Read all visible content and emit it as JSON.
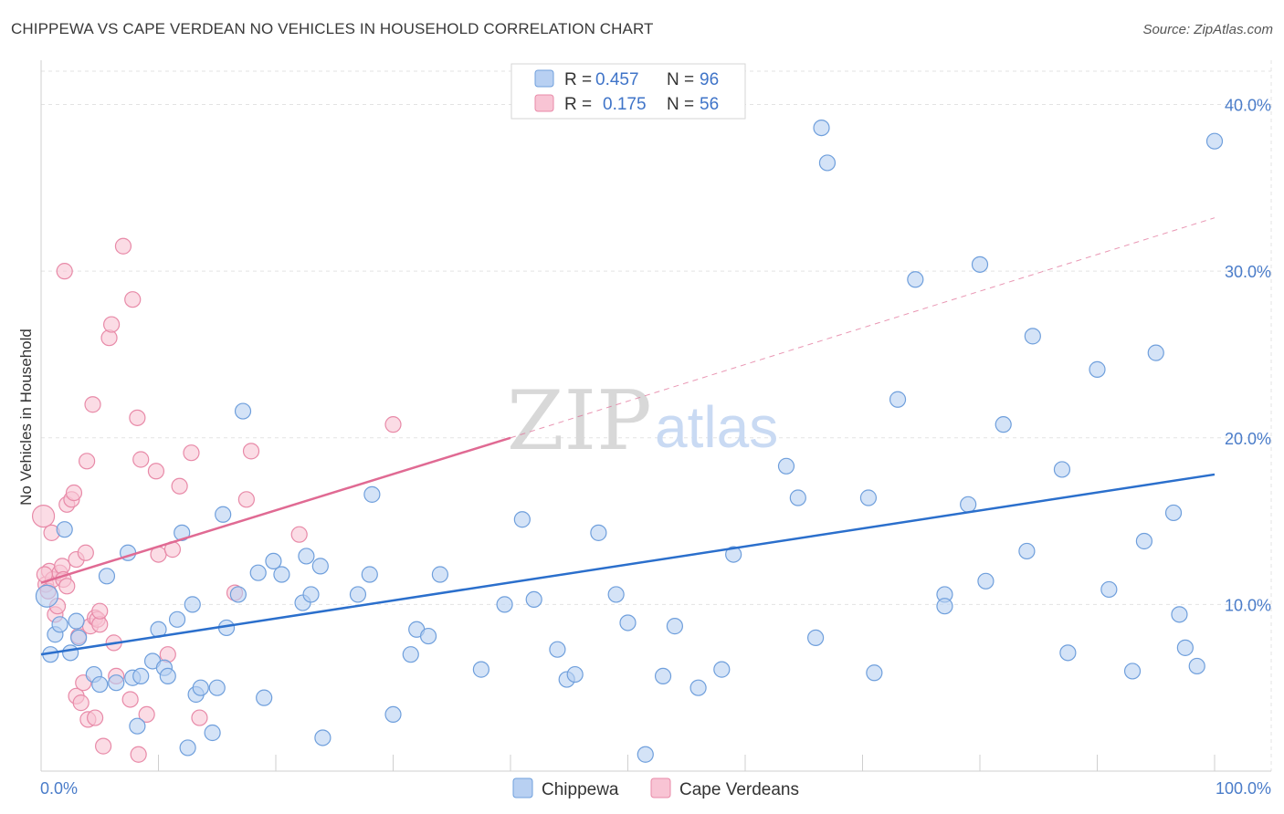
{
  "title": "CHIPPEWA VS CAPE VERDEAN NO VEHICLES IN HOUSEHOLD CORRELATION CHART",
  "source": "Source: ZipAtlas.com",
  "watermark": {
    "zip": "ZIP",
    "atlas": "atlas"
  },
  "colors": {
    "blue_fill": "#b8d0f2",
    "blue_stroke": "#6f9fdc",
    "blue_line": "#2b6fcc",
    "pink_fill": "#f8c4d4",
    "pink_stroke": "#e88aa8",
    "pink_line": "#e06a93",
    "tick_text": "#4a7cc9"
  },
  "legend": {
    "rows": [
      {
        "r_label": "R =",
        "r_value": "0.457",
        "n_label": "N =",
        "n_value": "96"
      },
      {
        "r_label": "R =",
        "r_value": "0.175",
        "n_label": "N =",
        "n_value": "56"
      }
    ]
  },
  "bottom_legend": [
    "Chippewa",
    "Cape Verdeans"
  ],
  "chart_data": {
    "type": "scatter",
    "title": "CHIPPEWA VS CAPE VERDEAN NO VEHICLES IN HOUSEHOLD CORRELATION CHART",
    "xlabel": "",
    "ylabel": "No Vehicles in Household",
    "xlim": [
      0,
      100
    ],
    "ylim": [
      0,
      42
    ],
    "x_tick_labels": [
      "0.0%",
      "100.0%"
    ],
    "y_ticks": [
      10,
      20,
      30,
      40
    ],
    "y_tick_labels": [
      "10.0%",
      "20.0%",
      "30.0%",
      "40.0%"
    ],
    "grid": true,
    "legend_position": "top-center",
    "series": [
      {
        "name": "Chippewa",
        "r": 0.457,
        "n": 96,
        "trend": {
          "x0": 0,
          "y0": 7.0,
          "x1": 100,
          "y1": 17.8
        },
        "points": [
          [
            0.5,
            10.5
          ],
          [
            0.8,
            7.0
          ],
          [
            1.2,
            8.2
          ],
          [
            1.6,
            8.8
          ],
          [
            2.0,
            14.5
          ],
          [
            2.5,
            7.1
          ],
          [
            3.0,
            9.0
          ],
          [
            3.2,
            8.0
          ],
          [
            4.5,
            5.8
          ],
          [
            5.0,
            5.2
          ],
          [
            5.6,
            11.7
          ],
          [
            6.4,
            5.3
          ],
          [
            7.4,
            13.1
          ],
          [
            7.8,
            5.6
          ],
          [
            8.2,
            2.7
          ],
          [
            8.5,
            5.7
          ],
          [
            9.5,
            6.6
          ],
          [
            10.0,
            8.5
          ],
          [
            10.5,
            6.2
          ],
          [
            10.8,
            5.7
          ],
          [
            11.6,
            9.1
          ],
          [
            12.0,
            14.3
          ],
          [
            12.5,
            1.4
          ],
          [
            12.9,
            10.0
          ],
          [
            13.2,
            4.6
          ],
          [
            13.6,
            5.0
          ],
          [
            14.6,
            2.3
          ],
          [
            15.0,
            5.0
          ],
          [
            15.5,
            15.4
          ],
          [
            15.8,
            8.6
          ],
          [
            16.8,
            10.6
          ],
          [
            17.2,
            21.6
          ],
          [
            18.5,
            11.9
          ],
          [
            19.0,
            4.4
          ],
          [
            19.8,
            12.6
          ],
          [
            20.5,
            11.8
          ],
          [
            22.3,
            10.1
          ],
          [
            22.6,
            12.9
          ],
          [
            23.0,
            10.6
          ],
          [
            23.8,
            12.3
          ],
          [
            24.0,
            2.0
          ],
          [
            27.0,
            10.6
          ],
          [
            28.0,
            11.8
          ],
          [
            28.2,
            16.6
          ],
          [
            30.0,
            3.4
          ],
          [
            31.5,
            7.0
          ],
          [
            32.0,
            8.5
          ],
          [
            33.0,
            8.1
          ],
          [
            34.0,
            11.8
          ],
          [
            37.5,
            6.1
          ],
          [
            39.5,
            10.0
          ],
          [
            41.0,
            15.1
          ],
          [
            42.0,
            10.3
          ],
          [
            44.0,
            7.3
          ],
          [
            44.8,
            5.5
          ],
          [
            45.5,
            5.8
          ],
          [
            47.5,
            14.3
          ],
          [
            49.0,
            10.6
          ],
          [
            50.0,
            8.9
          ],
          [
            51.5,
            1.0
          ],
          [
            53.0,
            5.7
          ],
          [
            54.0,
            8.7
          ],
          [
            56.0,
            5.0
          ],
          [
            58.0,
            6.1
          ],
          [
            59.0,
            13.0
          ],
          [
            63.5,
            18.3
          ],
          [
            64.5,
            16.4
          ],
          [
            66.0,
            8.0
          ],
          [
            66.5,
            38.6
          ],
          [
            67.0,
            36.5
          ],
          [
            70.5,
            16.4
          ],
          [
            71.0,
            5.9
          ],
          [
            73.0,
            22.3
          ],
          [
            74.5,
            29.5
          ],
          [
            77.0,
            10.6
          ],
          [
            77.0,
            9.9
          ],
          [
            79.0,
            16.0
          ],
          [
            80.0,
            30.4
          ],
          [
            80.5,
            11.4
          ],
          [
            82.0,
            20.8
          ],
          [
            84.0,
            13.2
          ],
          [
            84.5,
            26.1
          ],
          [
            87.0,
            18.1
          ],
          [
            87.5,
            7.1
          ],
          [
            90.0,
            24.1
          ],
          [
            91.0,
            10.9
          ],
          [
            93.0,
            6.0
          ],
          [
            94.0,
            13.8
          ],
          [
            95.0,
            25.1
          ],
          [
            96.5,
            15.5
          ],
          [
            97.0,
            9.4
          ],
          [
            97.5,
            7.4
          ],
          [
            98.5,
            6.3
          ],
          [
            100.0,
            37.8
          ]
        ]
      },
      {
        "name": "Cape Verdeans",
        "r": 0.175,
        "n": 56,
        "trend": {
          "x0": 0,
          "y0": 11.3,
          "x1": 40,
          "y1": 20.0
        },
        "trend_ext": {
          "x0": 40,
          "y0": 20.0,
          "x1": 100,
          "y1": 33.2
        },
        "points": [
          [
            0.2,
            15.3
          ],
          [
            0.4,
            11.2
          ],
          [
            0.6,
            10.8
          ],
          [
            0.7,
            12.0
          ],
          [
            0.9,
            14.3
          ],
          [
            1.0,
            11.5
          ],
          [
            1.2,
            9.4
          ],
          [
            1.4,
            9.9
          ],
          [
            1.6,
            11.9
          ],
          [
            1.8,
            12.3
          ],
          [
            1.9,
            11.5
          ],
          [
            2.0,
            30.0
          ],
          [
            2.2,
            11.1
          ],
          [
            2.2,
            16.0
          ],
          [
            2.6,
            16.3
          ],
          [
            2.8,
            16.7
          ],
          [
            3.0,
            12.7
          ],
          [
            3.0,
            4.5
          ],
          [
            3.2,
            8.1
          ],
          [
            3.4,
            4.1
          ],
          [
            3.6,
            5.3
          ],
          [
            3.8,
            13.1
          ],
          [
            3.9,
            18.6
          ],
          [
            4.0,
            3.1
          ],
          [
            4.2,
            8.7
          ],
          [
            4.4,
            22.0
          ],
          [
            4.6,
            3.2
          ],
          [
            4.6,
            9.2
          ],
          [
            4.8,
            9.1
          ],
          [
            5.0,
            8.8
          ],
          [
            5.0,
            9.6
          ],
          [
            5.3,
            1.5
          ],
          [
            5.8,
            26.0
          ],
          [
            6.0,
            26.8
          ],
          [
            6.2,
            7.7
          ],
          [
            6.4,
            5.7
          ],
          [
            7.0,
            31.5
          ],
          [
            7.6,
            4.3
          ],
          [
            7.8,
            28.3
          ],
          [
            8.2,
            21.2
          ],
          [
            8.3,
            1.0
          ],
          [
            8.5,
            18.7
          ],
          [
            9.0,
            3.4
          ],
          [
            9.8,
            18.0
          ],
          [
            10.0,
            13.0
          ],
          [
            11.2,
            13.3
          ],
          [
            10.8,
            7.0
          ],
          [
            11.8,
            17.1
          ],
          [
            12.8,
            19.1
          ],
          [
            13.5,
            3.2
          ],
          [
            16.5,
            10.7
          ],
          [
            17.5,
            16.3
          ],
          [
            17.9,
            19.2
          ],
          [
            22.0,
            14.2
          ],
          [
            30.0,
            20.8
          ],
          [
            0.3,
            11.8
          ]
        ]
      }
    ]
  }
}
